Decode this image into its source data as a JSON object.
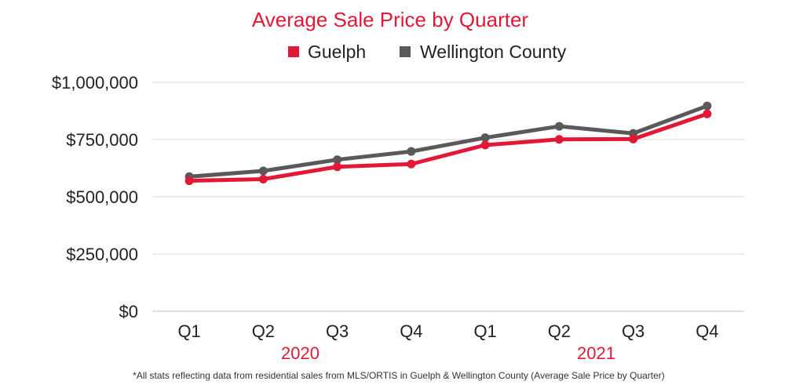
{
  "chart_data": {
    "type": "line",
    "title": "Average Sale Price by Quarter",
    "categories": [
      "Q1",
      "Q2",
      "Q3",
      "Q4",
      "Q1",
      "Q2",
      "Q3",
      "Q4"
    ],
    "groups": [
      {
        "label": "2020",
        "from": 0,
        "to": 3
      },
      {
        "label": "2021",
        "from": 4,
        "to": 7
      }
    ],
    "series": [
      {
        "name": "Wellington County",
        "color": "#595959",
        "values": [
          588000,
          613000,
          662000,
          698000,
          758000,
          808000,
          777000,
          897000
        ]
      },
      {
        "name": "Guelph",
        "color": "#e31837",
        "values": [
          570000,
          577000,
          631000,
          643000,
          726000,
          751000,
          752000,
          862000
        ]
      }
    ],
    "legend": [
      {
        "name": "Guelph",
        "color": "#e31837"
      },
      {
        "name": "Wellington County",
        "color": "#595959"
      }
    ],
    "legend_position": "top",
    "ylim": [
      0,
      1000000
    ],
    "yticks": [
      {
        "value": 0,
        "label": "$0"
      },
      {
        "value": 250000,
        "label": "$250,000"
      },
      {
        "value": 500000,
        "label": "$500,000"
      },
      {
        "value": 750000,
        "label": "$750,000"
      },
      {
        "value": 1000000,
        "label": "$1,000,000"
      }
    ],
    "grid": true,
    "footnote": "*All stats reflecting data from residential sales from MLS/ORTIS in Guelph & Wellington County (Average Sale Price by Quarter)"
  }
}
